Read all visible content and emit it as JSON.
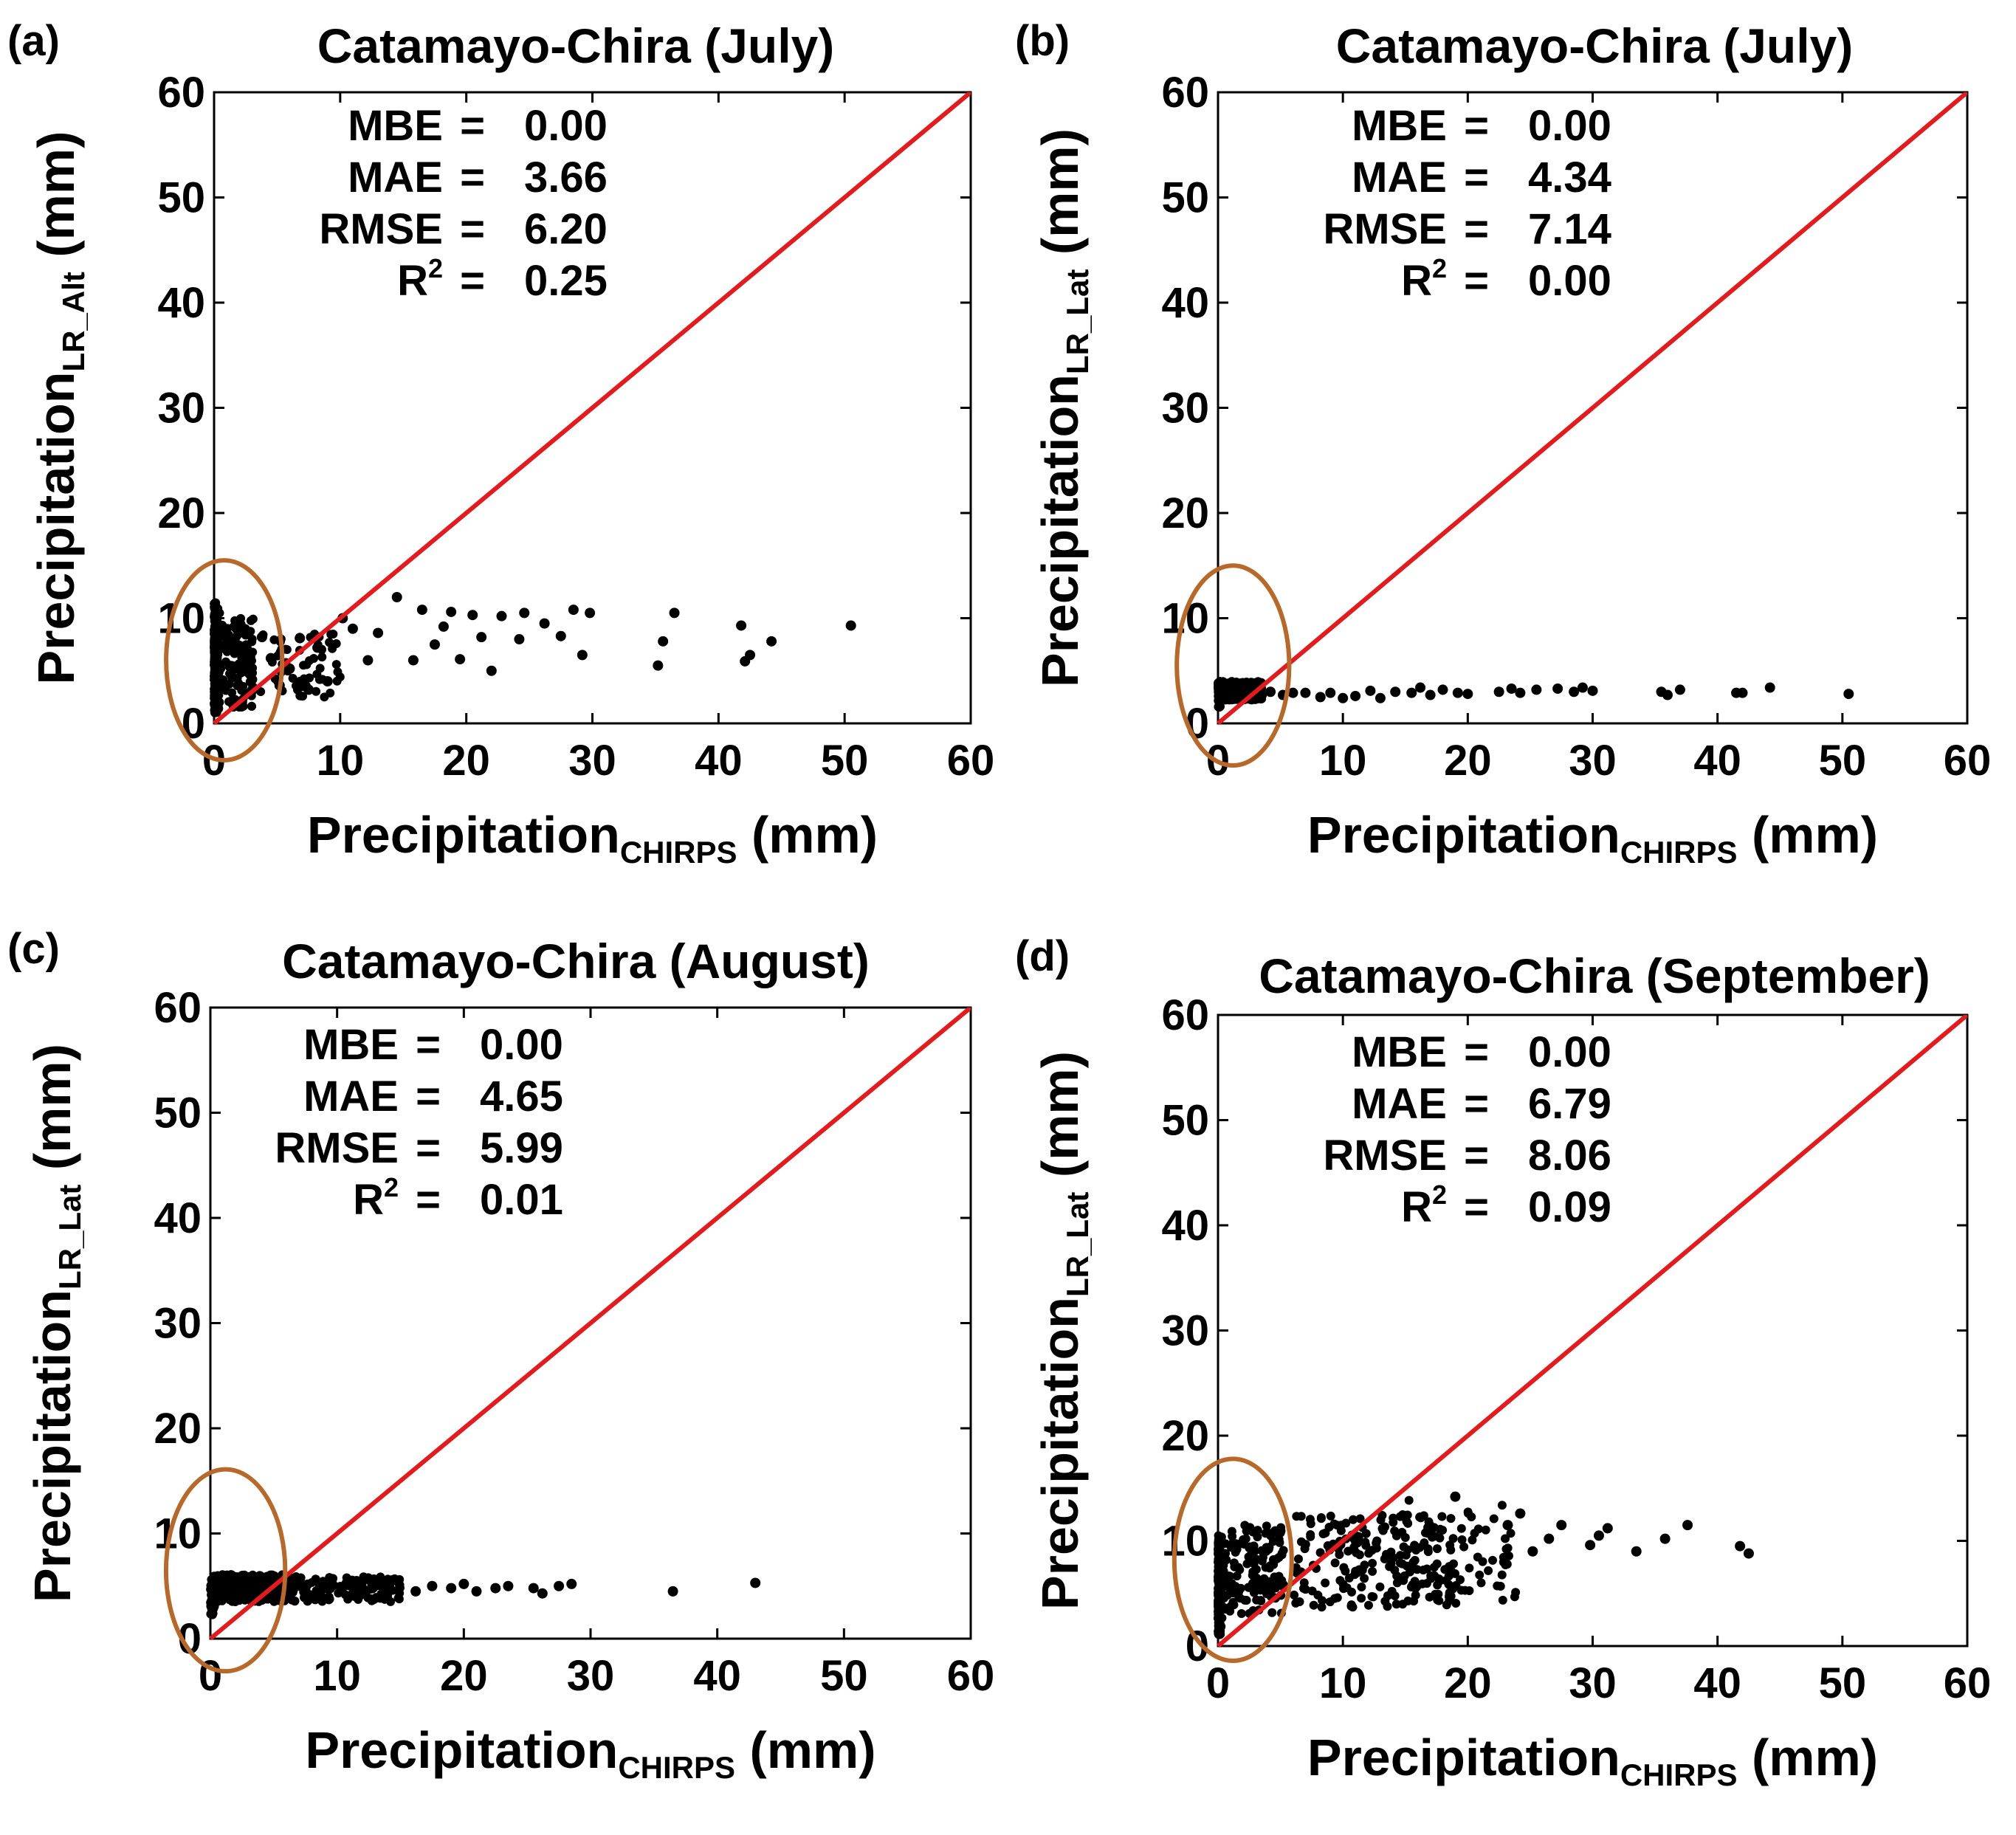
{
  "chart_data": [
    {
      "panel": "(a)",
      "type": "scatter",
      "title": "Catamayo-Chira (July)",
      "xlabel": {
        "main": "Precipitation",
        "sub": "CHIRPS",
        "unit": "(mm)"
      },
      "ylabel": {
        "main": "Precipitation",
        "sub": "LR_Alt",
        "unit": "(mm)"
      },
      "xlim": [
        0,
        60
      ],
      "ylim": [
        0,
        60
      ],
      "ticks": [
        "0",
        "10",
        "20",
        "30",
        "40",
        "50",
        "60"
      ],
      "reference_line": {
        "from": [
          0,
          0
        ],
        "to": [
          60,
          60
        ],
        "color": "#e41a1c"
      },
      "highlight_ellipse": {
        "center": [
          0.8,
          6
        ],
        "rx": 4.6,
        "ry": 9.5,
        "color": "#b8692a"
      },
      "stats": [
        {
          "name": "MBE",
          "value": "0.00"
        },
        {
          "name": "MAE",
          "value": "3.66"
        },
        {
          "name": "RMSE",
          "value": "6.20"
        },
        {
          "name": "R",
          "sup": "2",
          "value": "0.25"
        }
      ],
      "scatter_model": {
        "seed": 11,
        "profile": "a"
      },
      "series": [
        {
          "name": "points",
          "points": [
            [
              50.5,
              9.3
            ],
            [
              44.2,
              7.8
            ],
            [
              42.5,
              6.5
            ],
            [
              41.8,
              9.3
            ],
            [
              42.1,
              5.9
            ],
            [
              36.5,
              10.5
            ],
            [
              35.6,
              7.8
            ],
            [
              35.2,
              5.5
            ],
            [
              29.8,
              10.5
            ],
            [
              29.2,
              6.5
            ],
            [
              28.5,
              10.8
            ],
            [
              27.5,
              8.3
            ],
            [
              26.2,
              9.5
            ],
            [
              24.6,
              10.5
            ],
            [
              24.2,
              8.0
            ],
            [
              22.8,
              10.2
            ],
            [
              22.0,
              5.0
            ],
            [
              21.2,
              8.2
            ],
            [
              20.5,
              10.3
            ],
            [
              19.5,
              6.1
            ],
            [
              18.8,
              10.6
            ],
            [
              18.2,
              9.2
            ],
            [
              17.5,
              7.5
            ],
            [
              16.5,
              10.8
            ],
            [
              15.8,
              6.0
            ],
            [
              14.5,
              12.0
            ],
            [
              13.0,
              8.6
            ],
            [
              12.2,
              6.0
            ],
            [
              11.0,
              9.0
            ],
            [
              10.2,
              10.0
            ],
            [
              9.0,
              4.0
            ],
            [
              8.2,
              7.2
            ],
            [
              7.5,
              3.2
            ],
            [
              6.8,
              8.1
            ],
            [
              6.0,
              5.2
            ],
            [
              5.2,
              3.6
            ],
            [
              4.5,
              6.2
            ],
            [
              3.8,
              8.2
            ],
            [
              3.0,
              3.1
            ],
            [
              2.5,
              7.0
            ],
            [
              2.0,
              5.6
            ]
          ]
        }
      ]
    },
    {
      "panel": "(b)",
      "type": "scatter",
      "title": "Catamayo-Chira (July)",
      "xlabel": {
        "main": "Precipitation",
        "sub": "CHIRPS",
        "unit": "(mm)"
      },
      "ylabel": {
        "main": "Precipitation",
        "sub": "LR_Lat",
        "unit": "(mm)"
      },
      "xlim": [
        0,
        60
      ],
      "ylim": [
        0,
        60
      ],
      "ticks": [
        "0",
        "10",
        "20",
        "30",
        "40",
        "50",
        "60"
      ],
      "reference_line": {
        "from": [
          0,
          0
        ],
        "to": [
          60,
          60
        ],
        "color": "#e41a1c"
      },
      "highlight_ellipse": {
        "center": [
          1.2,
          5.5
        ],
        "rx": 4.5,
        "ry": 9.5,
        "color": "#b8692a"
      },
      "stats": [
        {
          "name": "MBE",
          "value": "0.00"
        },
        {
          "name": "MAE",
          "value": "4.34"
        },
        {
          "name": "RMSE",
          "value": "7.14"
        },
        {
          "name": "R",
          "sup": "2",
          "value": "0.00"
        }
      ],
      "scatter_model": {
        "seed": 23,
        "profile": "b"
      },
      "series": [
        {
          "name": "points",
          "points": [
            [
              50.5,
              2.8
            ],
            [
              44.2,
              3.4
            ],
            [
              42.0,
              2.9
            ],
            [
              41.5,
              2.9
            ],
            [
              37.0,
              3.2
            ],
            [
              36.0,
              2.7
            ],
            [
              35.5,
              3.0
            ],
            [
              30.0,
              3.1
            ],
            [
              29.2,
              3.4
            ],
            [
              28.5,
              3.0
            ],
            [
              27.2,
              3.3
            ],
            [
              25.5,
              3.2
            ],
            [
              24.2,
              2.9
            ],
            [
              23.5,
              3.3
            ],
            [
              22.5,
              3.0
            ],
            [
              20.0,
              2.8
            ],
            [
              19.2,
              2.9
            ],
            [
              18.0,
              3.2
            ],
            [
              17.0,
              2.7
            ],
            [
              16.2,
              3.4
            ],
            [
              15.5,
              2.9
            ],
            [
              14.2,
              3.0
            ],
            [
              13.0,
              2.4
            ],
            [
              12.2,
              3.1
            ],
            [
              11.0,
              2.6
            ],
            [
              10.0,
              2.4
            ],
            [
              9.0,
              2.9
            ],
            [
              8.2,
              2.5
            ],
            [
              7.0,
              2.9
            ],
            [
              6.0,
              2.9
            ],
            [
              5.2,
              2.7
            ],
            [
              4.2,
              3.0
            ],
            [
              3.5,
              2.7
            ]
          ]
        }
      ]
    },
    {
      "panel": "(c)",
      "type": "scatter",
      "title": "Catamayo-Chira (August)",
      "xlabel": {
        "main": "Precipitation",
        "sub": "CHIRPS",
        "unit": "(mm)"
      },
      "ylabel": {
        "main": "Precipitation",
        "sub": "LR_Lat",
        "unit": "(mm)"
      },
      "xlim": [
        0,
        60
      ],
      "ylim": [
        0,
        60
      ],
      "ticks": [
        "0",
        "10",
        "20",
        "30",
        "40",
        "50",
        "60"
      ],
      "reference_line": {
        "from": [
          0,
          0
        ],
        "to": [
          60,
          60
        ],
        "color": "#e41a1c"
      },
      "highlight_ellipse": {
        "center": [
          1.2,
          6.5
        ],
        "rx": 4.7,
        "ry": 9.6,
        "color": "#b8692a"
      },
      "stats": [
        {
          "name": "MBE",
          "value": "0.00"
        },
        {
          "name": "MAE",
          "value": "4.65"
        },
        {
          "name": "RMSE",
          "value": "5.99"
        },
        {
          "name": "R",
          "sup": "2",
          "value": "0.01"
        }
      ],
      "scatter_model": {
        "seed": 37,
        "profile": "c"
      },
      "series": [
        {
          "name": "points",
          "points": [
            [
              43.0,
              5.3
            ],
            [
              36.5,
              4.5
            ],
            [
              28.5,
              5.2
            ],
            [
              27.5,
              5.0
            ],
            [
              26.2,
              4.3
            ],
            [
              25.5,
              4.8
            ],
            [
              23.5,
              5.0
            ],
            [
              22.5,
              4.8
            ],
            [
              21.0,
              4.5
            ],
            [
              20.0,
              5.2
            ],
            [
              19.0,
              4.8
            ],
            [
              17.5,
              5.0
            ],
            [
              16.2,
              4.5
            ]
          ]
        }
      ]
    },
    {
      "panel": "(d)",
      "type": "scatter",
      "title": "Catamayo-Chira (September)",
      "xlabel": {
        "main": "Precipitation",
        "sub": "CHIRPS",
        "unit": "(mm)"
      },
      "ylabel": {
        "main": "Precipitation",
        "sub": "LR_Lat",
        "unit": "(mm)"
      },
      "xlim": [
        0,
        60
      ],
      "ylim": [
        0,
        60
      ],
      "ticks": [
        "0",
        "10",
        "20",
        "30",
        "40",
        "50",
        "60"
      ],
      "reference_line": {
        "from": [
          0,
          0
        ],
        "to": [
          60,
          60
        ],
        "color": "#e41a1c"
      },
      "highlight_ellipse": {
        "center": [
          1.2,
          8.2
        ],
        "rx": 4.7,
        "ry": 9.6,
        "color": "#b8692a"
      },
      "stats": [
        {
          "name": "MBE",
          "value": "0.00"
        },
        {
          "name": "MAE",
          "value": "6.79"
        },
        {
          "name": "RMSE",
          "value": "8.06"
        },
        {
          "name": "R",
          "sup": "2",
          "value": "0.09"
        }
      ],
      "scatter_model": {
        "seed": 53,
        "profile": "d"
      },
      "series": [
        {
          "name": "points",
          "points": [
            [
              42.5,
              8.8
            ],
            [
              41.8,
              9.5
            ],
            [
              37.6,
              11.5
            ],
            [
              35.8,
              10.2
            ],
            [
              33.5,
              9.0
            ],
            [
              31.2,
              11.2
            ],
            [
              30.5,
              10.5
            ],
            [
              29.8,
              9.6
            ],
            [
              27.5,
              11.5
            ],
            [
              26.5,
              10.2
            ],
            [
              25.2,
              9.0
            ],
            [
              24.2,
              12.6
            ],
            [
              23.2,
              11.5
            ],
            [
              19.0,
              14.2
            ]
          ]
        }
      ]
    }
  ]
}
